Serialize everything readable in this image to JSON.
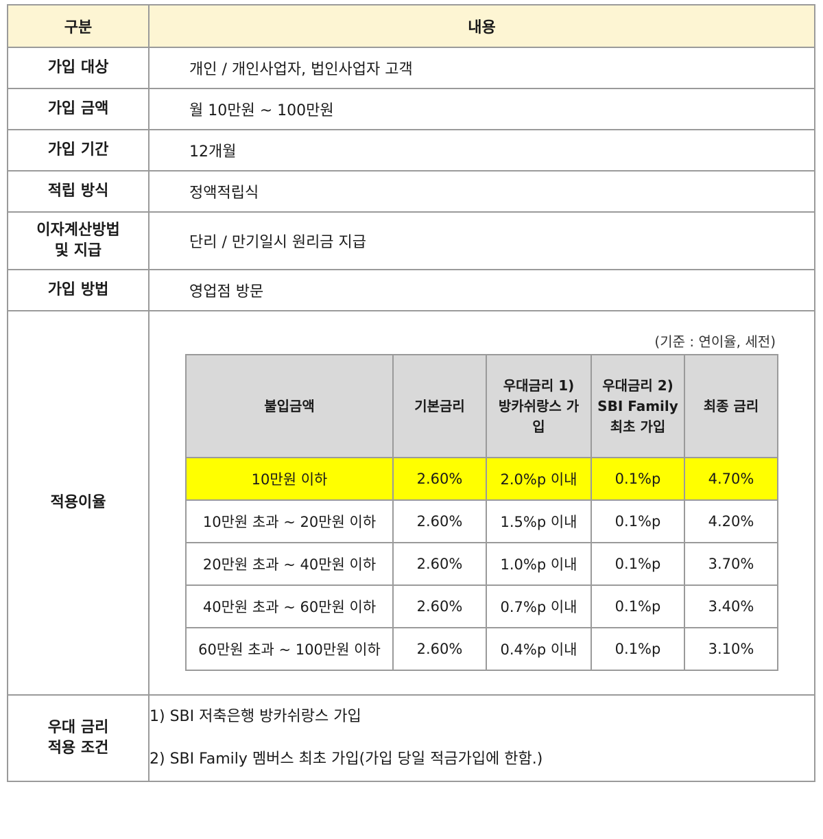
{
  "header": {
    "col1": "구분",
    "col2": "내용"
  },
  "rows": [
    {
      "label": "가입 대상",
      "value": "개인 / 개인사업자, 법인사업자 고객"
    },
    {
      "label": "가입 금액",
      "value": "월 10만원 ~ 100만원"
    },
    {
      "label": "가입 기간",
      "value": "12개월"
    },
    {
      "label": "적립 방식",
      "value": "정액적립식"
    },
    {
      "label_line1": "이자계산방법",
      "label_line2": "및 지급",
      "value": "단리 / 만기일시 원리금 지급"
    },
    {
      "label": "가입 방법",
      "value": "영업점 방문"
    }
  ],
  "rate_section": {
    "label": "적용이율",
    "basis_note": "(기준 : 연이율, 세전)",
    "columns": [
      "불입금액",
      "기본금리",
      "우대금리 1) 방카쉬랑스 가입",
      "우대금리 2) SBI Family 최초 가입",
      "최종 금리"
    ],
    "column_lines": [
      [
        "불입금액"
      ],
      [
        "기본금리"
      ],
      [
        "우대금리 1)",
        "방카쉬랑스 가",
        "입"
      ],
      [
        "우대금리 2)",
        "SBI Family",
        "최초 가입"
      ],
      [
        "최종 금리"
      ]
    ],
    "rows": [
      [
        "10만원 이하",
        "2.60%",
        "2.0%p 이내",
        "0.1%p",
        "4.70%"
      ],
      [
        "10만원 초과 ~ 20만원 이하",
        "2.60%",
        "1.5%p 이내",
        "0.1%p",
        "4.20%"
      ],
      [
        "20만원 초과 ~ 40만원 이하",
        "2.60%",
        "1.0%p 이내",
        "0.1%p",
        "3.70%"
      ],
      [
        "40만원 초과 ~ 60만원 이하",
        "2.60%",
        "0.7%p 이내",
        "0.1%p",
        "3.40%"
      ],
      [
        "60만원 초과 ~ 100만원 이하",
        "2.60%",
        "0.4%p 이내",
        "0.1%p",
        "3.10%"
      ]
    ],
    "highlight_row_color": "#ffff00",
    "header_bg": "#d9d9d9"
  },
  "conditions": {
    "label_line1": "우대 금리",
    "label_line2": "적용 조건",
    "items": [
      "1) SBI 저축은행 방카쉬랑스 가입",
      "2) SBI Family 멤버스 최초 가입(가입 당일 적금가입에 한함.)"
    ]
  },
  "colors": {
    "title_bg": "#fdf5d3",
    "border": "#9a9a9a"
  }
}
